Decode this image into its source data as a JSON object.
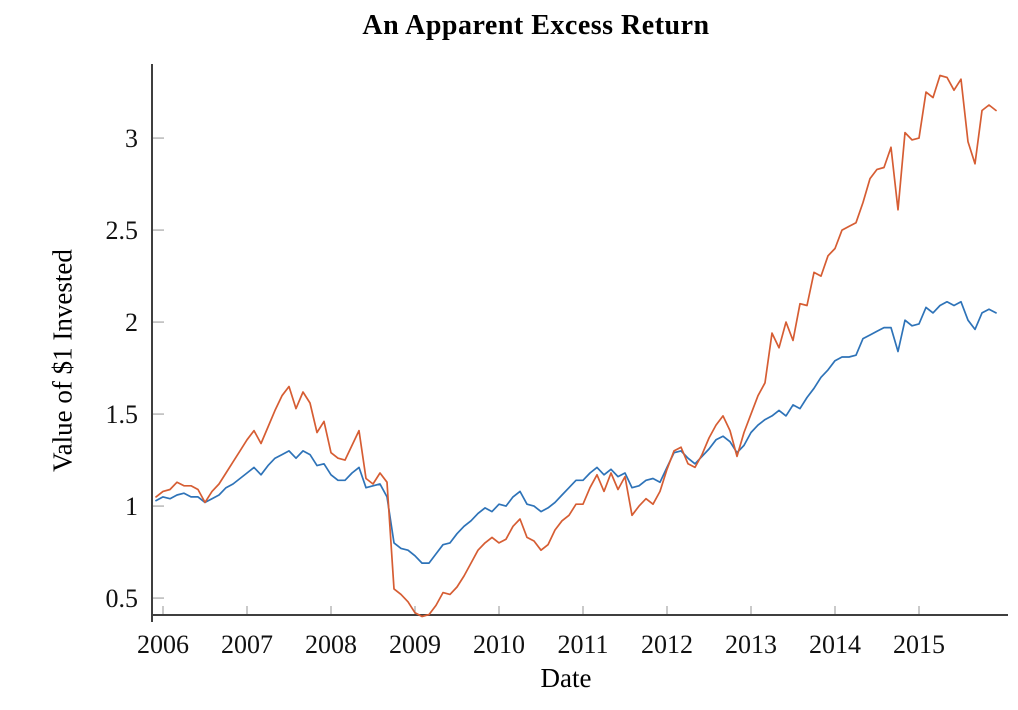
{
  "figure": {
    "title": "An Apparent Excess Return",
    "xlabel": "Date",
    "ylabel": "Value of $1 Invested"
  },
  "chart_data": {
    "type": "line",
    "title": "An Apparent Excess Return",
    "xlabel": "Date",
    "ylabel": "Value of $1 Invested",
    "x_start": "2005-12",
    "x_freq": "monthly",
    "xtick_labels": [
      "2006",
      "2007",
      "2008",
      "2009",
      "2010",
      "2011",
      "2012",
      "2013",
      "2014",
      "2015"
    ],
    "yticks": [
      0.5,
      1,
      1.5,
      2,
      2.5,
      3
    ],
    "ytick_labels": [
      "0.5",
      "1",
      "1.5",
      "2",
      "2.5",
      "3"
    ],
    "ylim": [
      0.41,
      3.38
    ],
    "grid": false,
    "legend": "none",
    "axis_color": "#3f3f3f",
    "tick_color": "#b3b3b3",
    "series": [
      {
        "name": "series-blue",
        "color": "#2e73b8",
        "values": [
          1.03,
          1.05,
          1.04,
          1.06,
          1.07,
          1.05,
          1.05,
          1.02,
          1.04,
          1.06,
          1.1,
          1.12,
          1.15,
          1.18,
          1.21,
          1.17,
          1.22,
          1.26,
          1.28,
          1.3,
          1.26,
          1.3,
          1.28,
          1.22,
          1.23,
          1.17,
          1.14,
          1.14,
          1.18,
          1.21,
          1.1,
          1.11,
          1.12,
          1.05,
          0.8,
          0.77,
          0.76,
          0.73,
          0.69,
          0.69,
          0.74,
          0.79,
          0.8,
          0.85,
          0.89,
          0.92,
          0.96,
          0.99,
          0.97,
          1.01,
          1.0,
          1.05,
          1.08,
          1.01,
          1.0,
          0.97,
          0.99,
          1.02,
          1.06,
          1.1,
          1.14,
          1.14,
          1.18,
          1.21,
          1.17,
          1.2,
          1.16,
          1.18,
          1.1,
          1.11,
          1.14,
          1.15,
          1.13,
          1.21,
          1.29,
          1.3,
          1.26,
          1.23,
          1.27,
          1.31,
          1.36,
          1.38,
          1.35,
          1.29,
          1.33,
          1.4,
          1.44,
          1.47,
          1.49,
          1.52,
          1.49,
          1.55,
          1.53,
          1.59,
          1.64,
          1.7,
          1.74,
          1.79,
          1.81,
          1.81,
          1.82,
          1.91,
          1.93,
          1.95,
          1.97,
          1.97,
          1.84,
          2.01,
          1.98,
          1.99,
          2.08,
          2.05,
          2.09,
          2.11,
          2.09,
          2.11,
          2.01,
          1.96,
          2.05,
          2.07,
          2.05
        ]
      },
      {
        "name": "series-orange",
        "color": "#d65d33",
        "values": [
          1.05,
          1.08,
          1.09,
          1.13,
          1.11,
          1.11,
          1.09,
          1.02,
          1.08,
          1.12,
          1.18,
          1.24,
          1.3,
          1.36,
          1.41,
          1.34,
          1.43,
          1.52,
          1.6,
          1.65,
          1.53,
          1.62,
          1.56,
          1.4,
          1.46,
          1.29,
          1.26,
          1.25,
          1.33,
          1.41,
          1.15,
          1.12,
          1.18,
          1.13,
          0.55,
          0.52,
          0.48,
          0.42,
          0.4,
          0.41,
          0.46,
          0.53,
          0.52,
          0.56,
          0.62,
          0.69,
          0.76,
          0.8,
          0.83,
          0.8,
          0.82,
          0.89,
          0.93,
          0.83,
          0.81,
          0.76,
          0.79,
          0.87,
          0.92,
          0.95,
          1.01,
          1.01,
          1.1,
          1.17,
          1.08,
          1.18,
          1.09,
          1.16,
          0.95,
          1.0,
          1.04,
          1.01,
          1.08,
          1.2,
          1.3,
          1.32,
          1.23,
          1.21,
          1.28,
          1.37,
          1.44,
          1.49,
          1.41,
          1.27,
          1.4,
          1.5,
          1.6,
          1.67,
          1.94,
          1.86,
          2.0,
          1.9,
          2.1,
          2.09,
          2.27,
          2.25,
          2.36,
          2.4,
          2.5,
          2.52,
          2.54,
          2.65,
          2.78,
          2.83,
          2.84,
          2.95,
          2.61,
          3.03,
          2.99,
          3.0,
          3.25,
          3.22,
          3.34,
          3.33,
          3.26,
          3.32,
          2.98,
          2.86,
          3.15,
          3.18,
          3.15
        ]
      }
    ]
  }
}
